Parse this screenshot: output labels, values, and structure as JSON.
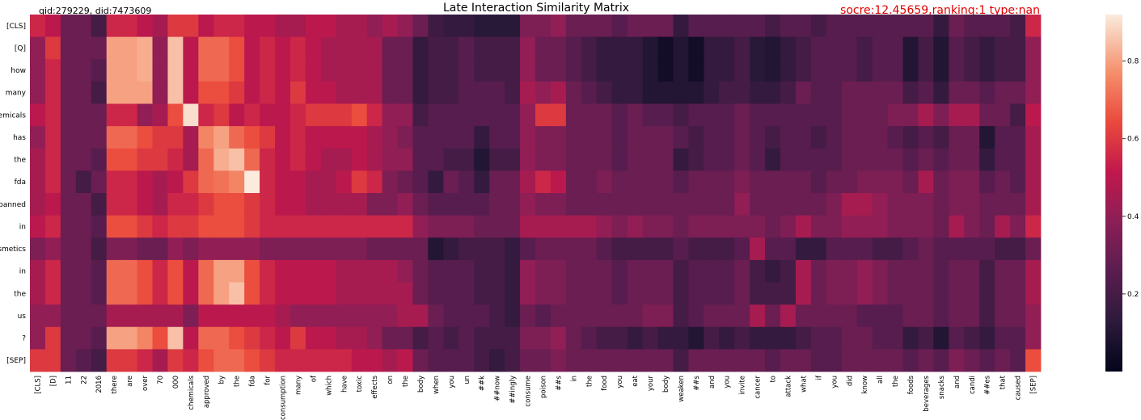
{
  "header": {
    "ids": "qid:279229,  did:7473609",
    "title": "Late Interaction Similarity Matrix",
    "score": "socre:12.45659,ranking:1 type:nan"
  },
  "chart_data": {
    "type": "heatmap",
    "title": "Late Interaction Similarity Matrix",
    "y_tokens": [
      "[CLS]",
      "[Q]",
      "how",
      "many",
      "chemicals",
      "has",
      "the",
      "fda",
      "banned",
      "in",
      "cosmetics",
      "in",
      "the",
      "us",
      "?",
      "[SEP]"
    ],
    "x_tokens": [
      "[CLS]",
      "[D]",
      "11",
      "22",
      "2016",
      "there",
      "are",
      "over",
      "70",
      "000",
      "chemicals",
      "approved",
      "by",
      "the",
      "fda",
      "for",
      "consumption",
      "many",
      "of",
      "which",
      "have",
      "toxic",
      "effects",
      "on",
      "the",
      "body",
      "when",
      "you",
      "un",
      "##k",
      "##now",
      "##ingly",
      "consume",
      "poison",
      "##s",
      "in",
      "the",
      "food",
      "you",
      "eat",
      "your",
      "body",
      "weaken",
      "##s",
      "and",
      "you",
      "invite",
      "cancer",
      "to",
      "attack",
      "what",
      "if",
      "you",
      "did",
      "know",
      "all",
      "the",
      "foods",
      "beverages",
      "snacks",
      "and",
      "candi",
      "##es",
      "that",
      "caused",
      "[SEP]"
    ],
    "colorbar": {
      "min": 0.0,
      "max": 0.92,
      "ticks": [
        0.2,
        0.4,
        0.6,
        0.8
      ]
    },
    "colormap": "rocket",
    "values": [
      [
        0.55,
        0.5,
        0.3,
        0.3,
        0.2,
        0.55,
        0.55,
        0.5,
        0.45,
        0.6,
        0.6,
        0.5,
        0.55,
        0.55,
        0.5,
        0.5,
        0.45,
        0.45,
        0.5,
        0.5,
        0.45,
        0.45,
        0.4,
        0.45,
        0.4,
        0.3,
        0.18,
        0.15,
        0.15,
        0.12,
        0.12,
        0.12,
        0.35,
        0.35,
        0.4,
        0.3,
        0.3,
        0.3,
        0.25,
        0.3,
        0.3,
        0.3,
        0.15,
        0.25,
        0.25,
        0.25,
        0.25,
        0.25,
        0.2,
        0.25,
        0.25,
        0.2,
        0.25,
        0.25,
        0.25,
        0.25,
        0.25,
        0.25,
        0.25,
        0.15,
        0.3,
        0.25,
        0.25,
        0.25,
        0.2,
        0.55
      ],
      [
        0.4,
        0.6,
        0.3,
        0.3,
        0.3,
        0.8,
        0.8,
        0.82,
        0.4,
        0.85,
        0.5,
        0.7,
        0.7,
        0.65,
        0.5,
        0.55,
        0.5,
        0.55,
        0.5,
        0.45,
        0.45,
        0.45,
        0.45,
        0.3,
        0.3,
        0.15,
        0.2,
        0.2,
        0.25,
        0.2,
        0.2,
        0.2,
        0.4,
        0.3,
        0.3,
        0.25,
        0.2,
        0.15,
        0.15,
        0.15,
        0.1,
        0.05,
        0.1,
        0.05,
        0.15,
        0.15,
        0.2,
        0.12,
        0.1,
        0.15,
        0.2,
        0.25,
        0.25,
        0.25,
        0.2,
        0.25,
        0.25,
        0.1,
        0.2,
        0.1,
        0.25,
        0.2,
        0.15,
        0.2,
        0.2,
        0.4
      ],
      [
        0.4,
        0.55,
        0.3,
        0.3,
        0.25,
        0.8,
        0.8,
        0.82,
        0.4,
        0.85,
        0.5,
        0.7,
        0.7,
        0.65,
        0.5,
        0.55,
        0.5,
        0.55,
        0.5,
        0.45,
        0.45,
        0.45,
        0.45,
        0.3,
        0.3,
        0.15,
        0.2,
        0.2,
        0.25,
        0.2,
        0.2,
        0.2,
        0.4,
        0.3,
        0.3,
        0.25,
        0.2,
        0.15,
        0.15,
        0.15,
        0.1,
        0.05,
        0.1,
        0.05,
        0.15,
        0.15,
        0.2,
        0.12,
        0.1,
        0.15,
        0.2,
        0.25,
        0.25,
        0.25,
        0.2,
        0.25,
        0.25,
        0.1,
        0.2,
        0.1,
        0.25,
        0.2,
        0.15,
        0.2,
        0.2,
        0.4
      ],
      [
        0.4,
        0.55,
        0.3,
        0.3,
        0.2,
        0.8,
        0.8,
        0.8,
        0.4,
        0.85,
        0.5,
        0.65,
        0.65,
        0.6,
        0.5,
        0.55,
        0.5,
        0.6,
        0.5,
        0.5,
        0.45,
        0.45,
        0.45,
        0.3,
        0.3,
        0.15,
        0.2,
        0.2,
        0.25,
        0.25,
        0.25,
        0.2,
        0.45,
        0.4,
        0.45,
        0.3,
        0.25,
        0.2,
        0.15,
        0.15,
        0.1,
        0.1,
        0.1,
        0.1,
        0.15,
        0.2,
        0.2,
        0.15,
        0.15,
        0.2,
        0.3,
        0.25,
        0.25,
        0.3,
        0.3,
        0.3,
        0.3,
        0.2,
        0.25,
        0.15,
        0.3,
        0.3,
        0.25,
        0.3,
        0.3,
        0.4
      ],
      [
        0.5,
        0.55,
        0.3,
        0.3,
        0.3,
        0.55,
        0.55,
        0.4,
        0.45,
        0.65,
        0.9,
        0.55,
        0.6,
        0.5,
        0.55,
        0.5,
        0.5,
        0.55,
        0.6,
        0.6,
        0.6,
        0.65,
        0.55,
        0.4,
        0.4,
        0.2,
        0.25,
        0.25,
        0.25,
        0.25,
        0.25,
        0.25,
        0.4,
        0.6,
        0.6,
        0.3,
        0.3,
        0.3,
        0.25,
        0.3,
        0.25,
        0.25,
        0.2,
        0.25,
        0.25,
        0.25,
        0.3,
        0.25,
        0.25,
        0.25,
        0.25,
        0.25,
        0.25,
        0.3,
        0.3,
        0.3,
        0.35,
        0.35,
        0.45,
        0.35,
        0.45,
        0.45,
        0.3,
        0.3,
        0.2,
        0.5
      ],
      [
        0.4,
        0.55,
        0.3,
        0.3,
        0.3,
        0.7,
        0.7,
        0.65,
        0.6,
        0.6,
        0.45,
        0.75,
        0.8,
        0.7,
        0.65,
        0.6,
        0.5,
        0.55,
        0.5,
        0.5,
        0.5,
        0.5,
        0.45,
        0.4,
        0.35,
        0.25,
        0.25,
        0.25,
        0.25,
        0.15,
        0.25,
        0.25,
        0.4,
        0.35,
        0.35,
        0.3,
        0.3,
        0.3,
        0.25,
        0.3,
        0.3,
        0.3,
        0.25,
        0.2,
        0.25,
        0.25,
        0.3,
        0.25,
        0.2,
        0.25,
        0.25,
        0.2,
        0.25,
        0.3,
        0.3,
        0.3,
        0.25,
        0.2,
        0.25,
        0.2,
        0.3,
        0.3,
        0.1,
        0.25,
        0.25,
        0.45
      ],
      [
        0.45,
        0.55,
        0.3,
        0.3,
        0.25,
        0.65,
        0.65,
        0.6,
        0.6,
        0.55,
        0.45,
        0.7,
        0.82,
        0.85,
        0.7,
        0.55,
        0.5,
        0.55,
        0.5,
        0.45,
        0.45,
        0.5,
        0.45,
        0.4,
        0.4,
        0.25,
        0.25,
        0.2,
        0.2,
        0.1,
        0.2,
        0.2,
        0.4,
        0.35,
        0.35,
        0.3,
        0.3,
        0.3,
        0.25,
        0.3,
        0.3,
        0.3,
        0.15,
        0.2,
        0.25,
        0.25,
        0.3,
        0.25,
        0.15,
        0.25,
        0.25,
        0.25,
        0.25,
        0.3,
        0.3,
        0.3,
        0.3,
        0.25,
        0.3,
        0.25,
        0.3,
        0.3,
        0.15,
        0.25,
        0.25,
        0.45
      ],
      [
        0.45,
        0.55,
        0.3,
        0.2,
        0.3,
        0.55,
        0.55,
        0.5,
        0.45,
        0.5,
        0.6,
        0.7,
        0.72,
        0.75,
        0.92,
        0.55,
        0.5,
        0.5,
        0.45,
        0.45,
        0.5,
        0.6,
        0.55,
        0.35,
        0.3,
        0.25,
        0.15,
        0.3,
        0.25,
        0.15,
        0.3,
        0.3,
        0.45,
        0.55,
        0.5,
        0.3,
        0.3,
        0.35,
        0.3,
        0.3,
        0.3,
        0.3,
        0.25,
        0.3,
        0.3,
        0.3,
        0.35,
        0.3,
        0.3,
        0.3,
        0.3,
        0.25,
        0.3,
        0.3,
        0.35,
        0.35,
        0.35,
        0.3,
        0.45,
        0.3,
        0.35,
        0.35,
        0.25,
        0.3,
        0.25,
        0.45
      ],
      [
        0.45,
        0.5,
        0.3,
        0.3,
        0.2,
        0.55,
        0.55,
        0.5,
        0.45,
        0.55,
        0.55,
        0.6,
        0.65,
        0.65,
        0.6,
        0.55,
        0.5,
        0.5,
        0.45,
        0.45,
        0.45,
        0.45,
        0.35,
        0.35,
        0.4,
        0.3,
        0.25,
        0.25,
        0.25,
        0.25,
        0.3,
        0.3,
        0.4,
        0.35,
        0.35,
        0.3,
        0.3,
        0.3,
        0.3,
        0.3,
        0.3,
        0.3,
        0.3,
        0.3,
        0.3,
        0.3,
        0.4,
        0.3,
        0.3,
        0.3,
        0.3,
        0.3,
        0.35,
        0.45,
        0.45,
        0.4,
        0.35,
        0.35,
        0.35,
        0.3,
        0.35,
        0.35,
        0.3,
        0.3,
        0.3,
        0.45
      ],
      [
        0.5,
        0.55,
        0.3,
        0.3,
        0.25,
        0.65,
        0.65,
        0.6,
        0.55,
        0.6,
        0.6,
        0.65,
        0.65,
        0.65,
        0.6,
        0.55,
        0.55,
        0.55,
        0.55,
        0.55,
        0.55,
        0.55,
        0.55,
        0.55,
        0.55,
        0.4,
        0.35,
        0.35,
        0.35,
        0.3,
        0.3,
        0.3,
        0.45,
        0.45,
        0.45,
        0.45,
        0.45,
        0.4,
        0.35,
        0.4,
        0.35,
        0.35,
        0.3,
        0.35,
        0.35,
        0.35,
        0.35,
        0.35,
        0.3,
        0.35,
        0.45,
        0.35,
        0.35,
        0.4,
        0.4,
        0.4,
        0.35,
        0.35,
        0.35,
        0.3,
        0.45,
        0.35,
        0.3,
        0.45,
        0.35,
        0.55
      ],
      [
        0.35,
        0.4,
        0.3,
        0.3,
        0.2,
        0.35,
        0.35,
        0.3,
        0.3,
        0.4,
        0.35,
        0.4,
        0.4,
        0.4,
        0.4,
        0.35,
        0.35,
        0.35,
        0.35,
        0.35,
        0.35,
        0.35,
        0.3,
        0.3,
        0.3,
        0.3,
        0.1,
        0.15,
        0.2,
        0.2,
        0.2,
        0.15,
        0.25,
        0.3,
        0.3,
        0.3,
        0.3,
        0.25,
        0.2,
        0.2,
        0.2,
        0.2,
        0.25,
        0.2,
        0.2,
        0.2,
        0.25,
        0.45,
        0.25,
        0.25,
        0.15,
        0.15,
        0.25,
        0.25,
        0.25,
        0.2,
        0.2,
        0.25,
        0.3,
        0.25,
        0.25,
        0.25,
        0.25,
        0.2,
        0.2,
        0.3
      ],
      [
        0.45,
        0.55,
        0.3,
        0.3,
        0.25,
        0.7,
        0.7,
        0.65,
        0.55,
        0.65,
        0.5,
        0.7,
        0.8,
        0.8,
        0.65,
        0.55,
        0.5,
        0.5,
        0.5,
        0.5,
        0.45,
        0.45,
        0.45,
        0.45,
        0.4,
        0.3,
        0.25,
        0.25,
        0.25,
        0.2,
        0.2,
        0.15,
        0.4,
        0.35,
        0.35,
        0.3,
        0.3,
        0.3,
        0.25,
        0.3,
        0.3,
        0.3,
        0.2,
        0.25,
        0.25,
        0.25,
        0.3,
        0.2,
        0.15,
        0.2,
        0.45,
        0.3,
        0.35,
        0.35,
        0.4,
        0.35,
        0.3,
        0.3,
        0.3,
        0.25,
        0.3,
        0.3,
        0.2,
        0.3,
        0.3,
        0.45
      ],
      [
        0.45,
        0.55,
        0.3,
        0.3,
        0.25,
        0.7,
        0.7,
        0.65,
        0.55,
        0.65,
        0.5,
        0.7,
        0.8,
        0.85,
        0.65,
        0.55,
        0.5,
        0.5,
        0.5,
        0.5,
        0.45,
        0.45,
        0.45,
        0.45,
        0.45,
        0.3,
        0.25,
        0.25,
        0.25,
        0.2,
        0.2,
        0.15,
        0.4,
        0.35,
        0.35,
        0.3,
        0.3,
        0.3,
        0.25,
        0.3,
        0.3,
        0.3,
        0.2,
        0.25,
        0.25,
        0.25,
        0.3,
        0.2,
        0.2,
        0.2,
        0.45,
        0.3,
        0.35,
        0.35,
        0.4,
        0.35,
        0.3,
        0.3,
        0.3,
        0.25,
        0.3,
        0.3,
        0.2,
        0.3,
        0.3,
        0.45
      ],
      [
        0.4,
        0.4,
        0.3,
        0.3,
        0.3,
        0.45,
        0.45,
        0.45,
        0.45,
        0.45,
        0.35,
        0.5,
        0.5,
        0.5,
        0.5,
        0.5,
        0.45,
        0.4,
        0.4,
        0.4,
        0.4,
        0.4,
        0.4,
        0.4,
        0.45,
        0.45,
        0.3,
        0.25,
        0.25,
        0.25,
        0.2,
        0.15,
        0.3,
        0.25,
        0.3,
        0.3,
        0.3,
        0.3,
        0.3,
        0.3,
        0.35,
        0.35,
        0.2,
        0.25,
        0.3,
        0.3,
        0.3,
        0.45,
        0.3,
        0.45,
        0.3,
        0.3,
        0.3,
        0.3,
        0.25,
        0.25,
        0.25,
        0.3,
        0.3,
        0.25,
        0.3,
        0.3,
        0.2,
        0.3,
        0.3,
        0.4
      ],
      [
        0.4,
        0.6,
        0.3,
        0.3,
        0.25,
        0.8,
        0.8,
        0.75,
        0.65,
        0.85,
        0.5,
        0.7,
        0.7,
        0.65,
        0.6,
        0.55,
        0.5,
        0.6,
        0.5,
        0.5,
        0.45,
        0.45,
        0.4,
        0.3,
        0.3,
        0.2,
        0.25,
        0.2,
        0.25,
        0.2,
        0.2,
        0.2,
        0.35,
        0.35,
        0.4,
        0.3,
        0.25,
        0.2,
        0.2,
        0.15,
        0.2,
        0.15,
        0.15,
        0.1,
        0.2,
        0.15,
        0.2,
        0.15,
        0.15,
        0.15,
        0.2,
        0.25,
        0.25,
        0.3,
        0.3,
        0.25,
        0.25,
        0.15,
        0.2,
        0.1,
        0.25,
        0.2,
        0.15,
        0.25,
        0.25,
        0.4
      ],
      [
        0.6,
        0.6,
        0.3,
        0.25,
        0.2,
        0.6,
        0.6,
        0.55,
        0.45,
        0.6,
        0.55,
        0.65,
        0.7,
        0.7,
        0.65,
        0.6,
        0.55,
        0.55,
        0.55,
        0.55,
        0.55,
        0.5,
        0.5,
        0.45,
        0.5,
        0.3,
        0.25,
        0.25,
        0.25,
        0.2,
        0.15,
        0.2,
        0.3,
        0.3,
        0.35,
        0.3,
        0.3,
        0.3,
        0.3,
        0.3,
        0.3,
        0.3,
        0.2,
        0.3,
        0.3,
        0.3,
        0.3,
        0.3,
        0.25,
        0.3,
        0.3,
        0.25,
        0.25,
        0.3,
        0.3,
        0.3,
        0.3,
        0.25,
        0.3,
        0.25,
        0.35,
        0.3,
        0.25,
        0.3,
        0.25,
        0.65
      ]
    ]
  }
}
